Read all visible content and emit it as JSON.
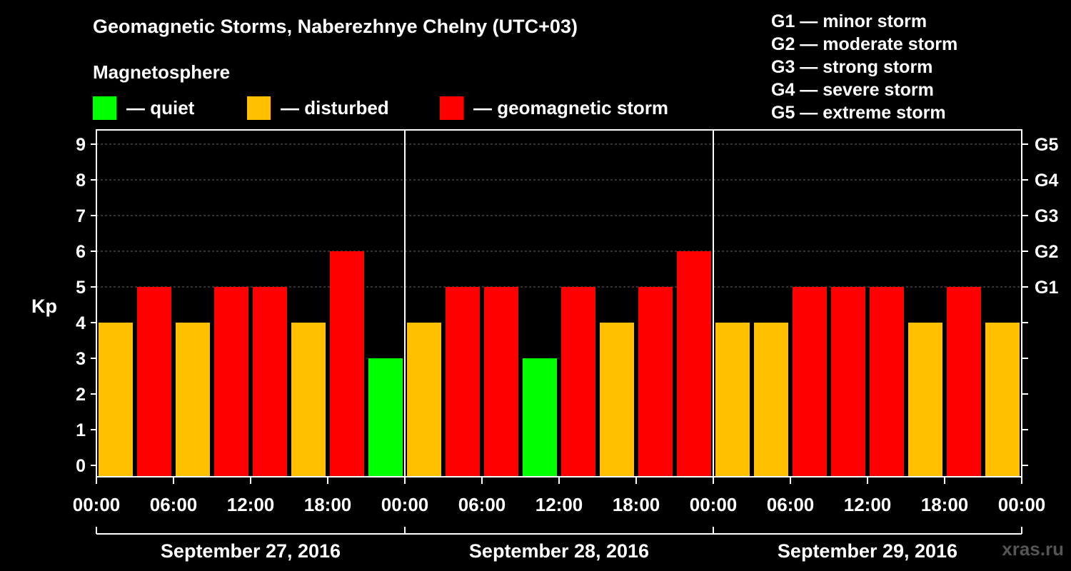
{
  "header": {
    "title": "Geomagnetic Storms, Naberezhnye Chelny (UTC+03)",
    "magnetosphere_label": "Magnetosphere"
  },
  "legend": [
    {
      "label": "— quiet",
      "color": "#00ff00"
    },
    {
      "label": "— disturbed",
      "color": "#ffc000"
    },
    {
      "label": "— geomagnetic storm",
      "color": "#ff0000"
    }
  ],
  "g_scale": [
    "G1 — minor storm",
    "G2 — moderate storm",
    "G3 — strong storm",
    "G4 — severe storm",
    "G5 — extreme storm"
  ],
  "watermark": "xras.ru",
  "chart_data": {
    "type": "bar",
    "ylabel": "Kp",
    "ylim": [
      0,
      9
    ],
    "yticks": [
      "0",
      "1",
      "2",
      "3",
      "4",
      "5",
      "6",
      "7",
      "8",
      "9"
    ],
    "right_ticks": [
      {
        "kp": 5,
        "label": "G1"
      },
      {
        "kp": 6,
        "label": "G2"
      },
      {
        "kp": 7,
        "label": "G3"
      },
      {
        "kp": 8,
        "label": "G4"
      },
      {
        "kp": 9,
        "label": "G5"
      }
    ],
    "xticks": [
      "00:00",
      "06:00",
      "12:00",
      "18:00",
      "00:00",
      "06:00",
      "12:00",
      "18:00",
      "00:00",
      "06:00",
      "12:00",
      "18:00",
      "00:00"
    ],
    "days": [
      "September 27, 2016",
      "September 28, 2016",
      "September 29, 2016"
    ],
    "values": [
      4,
      5,
      4,
      5,
      5,
      4,
      6,
      3,
      4,
      5,
      5,
      3,
      5,
      4,
      5,
      6,
      4,
      4,
      5,
      5,
      5,
      4,
      5,
      4
    ],
    "colors": {
      "quiet": "#00ff00",
      "disturbed": "#ffc000",
      "storm": "#ff0000"
    }
  }
}
